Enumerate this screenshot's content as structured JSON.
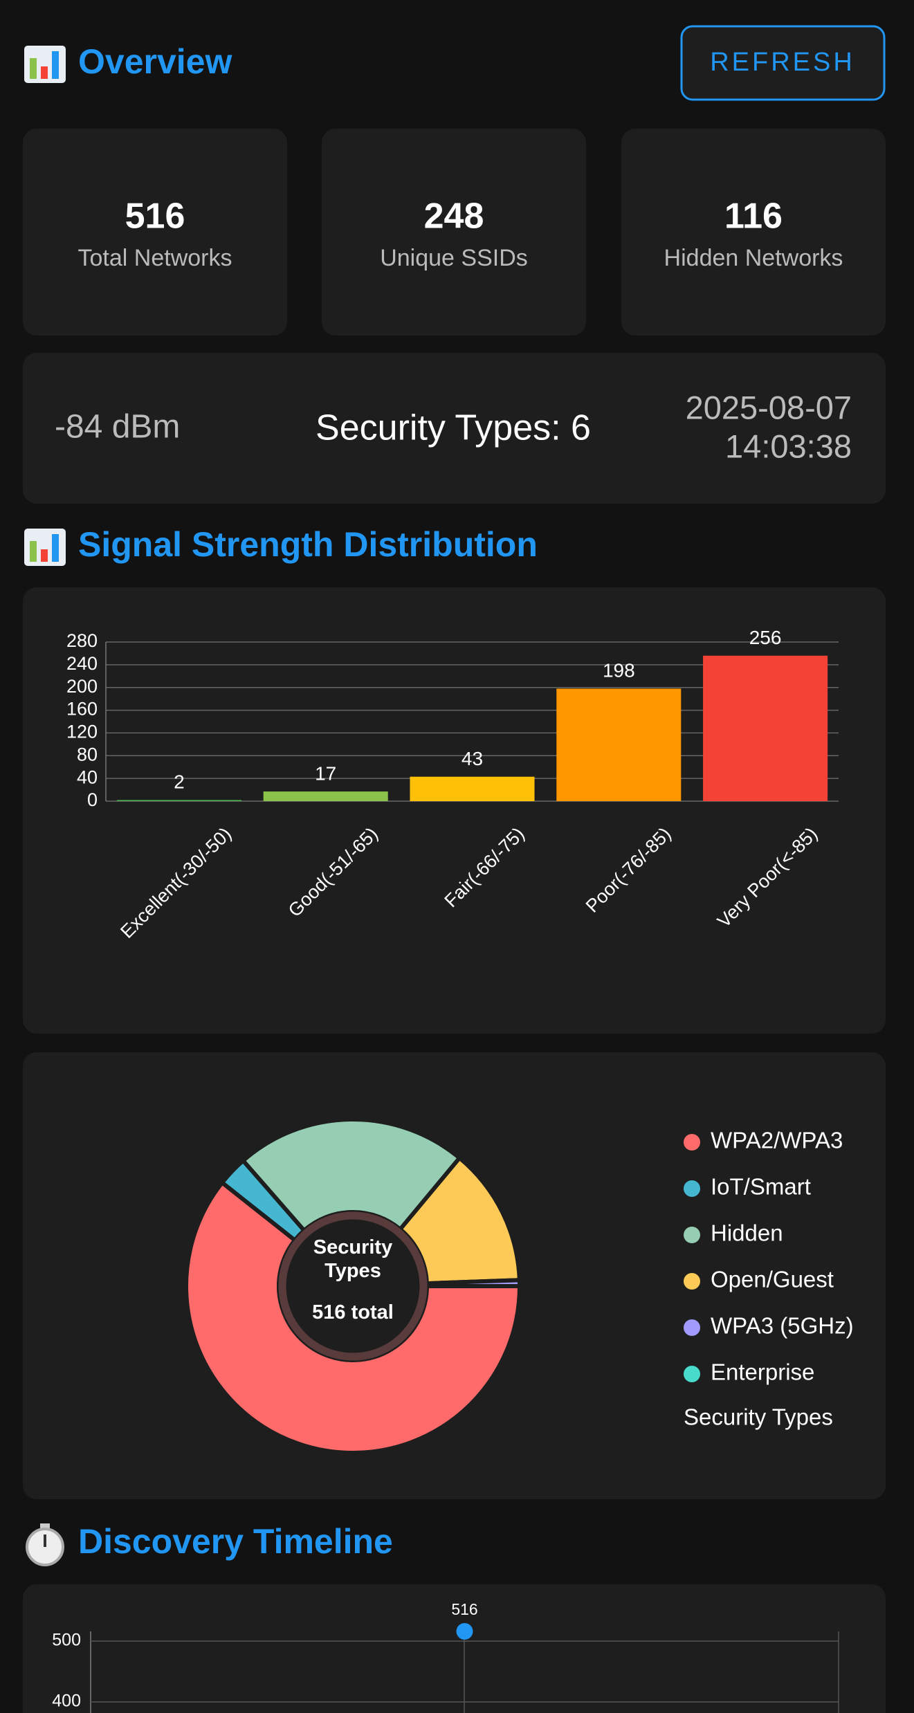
{
  "header": {
    "title": "Overview",
    "button": "REFRESH"
  },
  "stats": [
    {
      "value": 516,
      "label": "Total Networks"
    },
    {
      "value": 248,
      "label": "Unique SSIDs"
    },
    {
      "value": 116,
      "label": "Hidden Networks"
    }
  ],
  "info": {
    "signal": "-84 dBm",
    "security": "Security Types: 6",
    "date": "2025-08-07",
    "time": "14:03:38"
  },
  "sections": {
    "signal": "Signal Strength Distribution",
    "timeline": "Discovery Timeline"
  },
  "chart_data": [
    {
      "type": "bar",
      "categories": [
        "Excellent(-30/-50)",
        "Good(-51/-65)",
        "Fair(-66/-75)",
        "Poor(-76/-85)",
        "Very Poor(<-85)"
      ],
      "values": [
        2,
        17,
        43,
        198,
        256
      ],
      "colors": [
        "#4caf50",
        "#8bc34a",
        "#ffc107",
        "#ff9800",
        "#f44336"
      ],
      "ylim": [
        0,
        280
      ],
      "yticks": [
        0,
        40,
        80,
        120,
        160,
        200,
        240,
        280
      ],
      "grid": true
    },
    {
      "type": "doughnut",
      "categories": [
        "WPA2/WPA3",
        "IoT/Smart",
        "Hidden",
        "Open/Guest",
        "WPA3 (5GHz)",
        "Enterprise"
      ],
      "values": [
        313,
        15,
        116,
        69,
        3,
        0
      ],
      "colors": [
        "#ff6b6b",
        "#45b7d1",
        "#96ceb4",
        "#feca57",
        "#a29bfe",
        "#48dbcb"
      ],
      "center_title": "Security Types",
      "center_total": "516 total",
      "legend_title": "Security Types",
      "legend": "right"
    },
    {
      "type": "line",
      "categories": [
        null
      ],
      "values": [
        516
      ],
      "color": "#2196f3",
      "ylim": [
        0,
        516
      ],
      "yticks": [
        400,
        500
      ],
      "grid": true
    }
  ]
}
